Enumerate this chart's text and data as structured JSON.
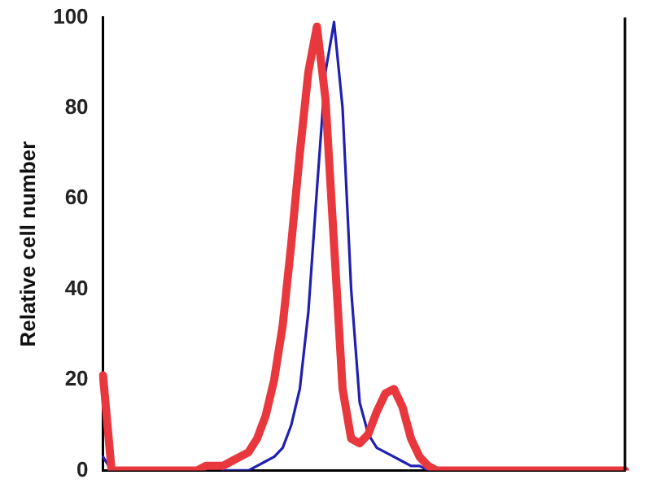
{
  "chart_data": {
    "type": "line",
    "ylabel": "Relative cell number",
    "categories": [
      null,
      null,
      null,
      null,
      null,
      null,
      null,
      null,
      null,
      null,
      null,
      null,
      null,
      null,
      null,
      null,
      null,
      null,
      null,
      null,
      null,
      null,
      null,
      null,
      null,
      null,
      null,
      null,
      null,
      null,
      null,
      null,
      null,
      null,
      null,
      null,
      null,
      null,
      null,
      null,
      null,
      null,
      null,
      null,
      null,
      null,
      null,
      null,
      null,
      null,
      null,
      null,
      null,
      null,
      null,
      null,
      null,
      null,
      null,
      null,
      null,
      null
    ],
    "series": [
      {
        "color": "#e8383d",
        "values": [
          21,
          0,
          0,
          0,
          0,
          0,
          0,
          0,
          0,
          0,
          0,
          0,
          1,
          1,
          1,
          2,
          3,
          4,
          7,
          12,
          20,
          32,
          50,
          70,
          88,
          98,
          82,
          50,
          18,
          7,
          6,
          8,
          13,
          17,
          18,
          14,
          7,
          3,
          1,
          0,
          0,
          0,
          0,
          0,
          0,
          0,
          0,
          0,
          0,
          0,
          0,
          0,
          0,
          0,
          0,
          0,
          0,
          0,
          0,
          0,
          0,
          0
        ]
      },
      {
        "color": "#2020b0",
        "values": [
          3,
          0,
          null,
          null,
          null,
          null,
          null,
          null,
          null,
          null,
          null,
          null,
          null,
          null,
          0,
          0,
          0,
          0,
          1,
          2,
          3,
          5,
          10,
          18,
          35,
          62,
          88,
          99,
          80,
          40,
          15,
          8,
          5,
          4,
          3,
          2,
          1,
          1,
          0,
          null,
          null,
          null,
          null,
          null,
          null,
          null,
          null,
          null,
          null,
          null,
          null,
          null,
          null,
          null,
          null,
          null,
          null,
          null,
          null,
          null,
          null,
          null
        ]
      }
    ],
    "ylim": [
      0,
      100
    ],
    "yticks": [
      0,
      20,
      40,
      60,
      80,
      100
    ],
    "tick_labels": "y",
    "grid": false,
    "legend": false,
    "marker": "none",
    "line_style": "solid"
  }
}
